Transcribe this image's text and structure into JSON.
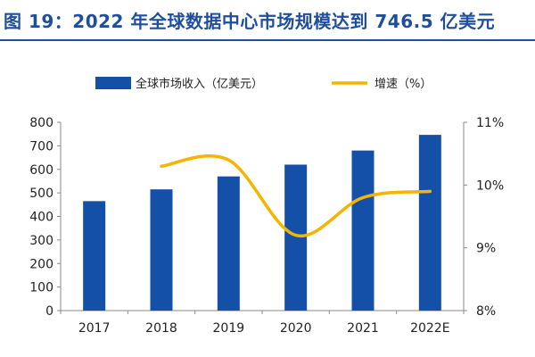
{
  "figure": {
    "title": "图 19：2022 年全球数据中心市场规模达到 746.5 亿美元"
  },
  "chart_data": {
    "type": "bar",
    "categories": [
      "2017",
      "2018",
      "2019",
      "2020",
      "2021",
      "2022E"
    ],
    "series": [
      {
        "name": "全球市场收入（亿美元）",
        "type": "bar",
        "axis": "left",
        "color": "#1550a8",
        "values": [
          465,
          515,
          570,
          620,
          680,
          746.5
        ]
      },
      {
        "name": "增速（%）",
        "type": "line",
        "axis": "right",
        "color": "#f5b400",
        "smooth": true,
        "values": [
          null,
          10.3,
          10.4,
          9.2,
          9.8,
          9.9
        ]
      }
    ],
    "y_left": {
      "lim": [
        0,
        800
      ],
      "ticks": [
        "0",
        "100",
        "200",
        "300",
        "400",
        "500",
        "600",
        "700",
        "800"
      ]
    },
    "y_right": {
      "lim": [
        8,
        11
      ],
      "ticks": [
        "8%",
        "9%",
        "10%",
        "11%"
      ]
    },
    "legend_position": "top",
    "grid": false
  }
}
